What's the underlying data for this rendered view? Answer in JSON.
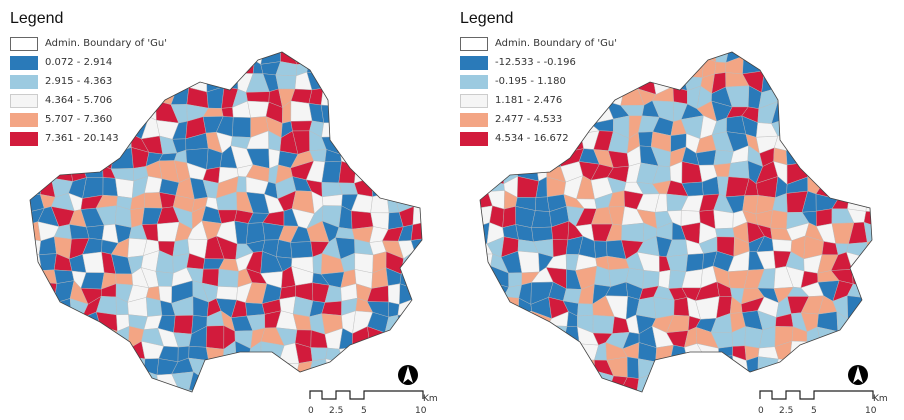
{
  "colors": [
    "#2a7ab9",
    "#9ccae0",
    "#f5f5f5",
    "#f3a584",
    "#d21b3c"
  ],
  "maps": [
    {
      "legend_title": "Legend",
      "boundary_label": "Admin. Boundary of 'Gu'",
      "classes": [
        "0.072 - 2.914",
        "2.915 - 4.363",
        "4.364 - 5.706",
        "5.707 - 7.360",
        "7.361 - 20.143"
      ]
    },
    {
      "legend_title": "Legend",
      "boundary_label": "Admin. Boundary of 'Gu'",
      "classes": [
        "-12.533 - -0.196",
        "-0.195 - 1.180",
        "1.181 - 2.476",
        "2.477 - 4.533",
        "4.534 - 16.672"
      ]
    }
  ],
  "scale_bar": {
    "ticks": [
      "0",
      "2.5",
      "5",
      "10"
    ],
    "unit": "Km"
  },
  "north_arrow": "north-arrow-icon"
}
